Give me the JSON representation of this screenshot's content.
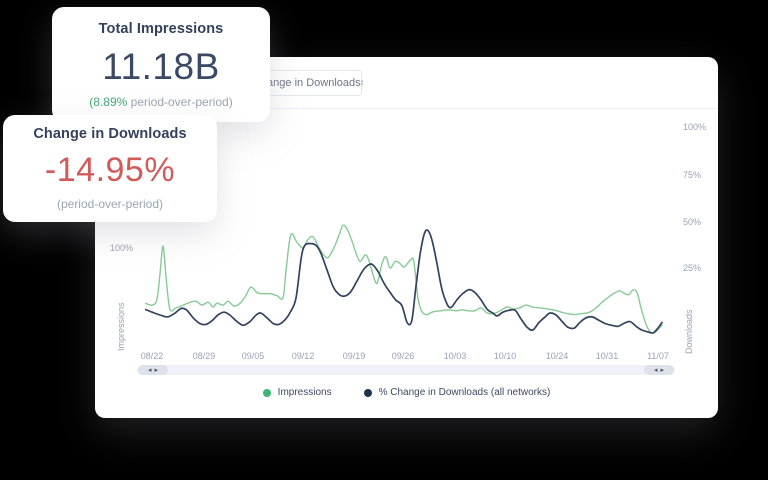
{
  "cards": {
    "impressions": {
      "title": "Total Impressions",
      "value": "11.18B",
      "delta": "(8.89%",
      "delta_rest": " period-over-period)",
      "delta_color": "#45a878"
    },
    "downloads": {
      "title": "Change in Downloads",
      "value": "-14.95%",
      "subtitle": "(period-over-period)",
      "value_color": "#d15b5b"
    }
  },
  "panel": {
    "dropdown": {
      "value": "Change in Downloads"
    },
    "legend": [
      {
        "label": "Impressions",
        "color": "#3eb573"
      },
      {
        "label": "% Change in Downloads (all networks)",
        "color": "#1e3253"
      }
    ]
  },
  "icons": {
    "select_caret_up": "▴",
    "select_caret_down": "▾",
    "scroll_left": "◂",
    "scroll_right": "▸"
  },
  "chart_data": {
    "type": "line",
    "title": "",
    "x_tick_labels": [
      "08/22",
      "08/29",
      "09/05",
      "09/12",
      "09/19",
      "09/26",
      "10/03",
      "10/10",
      "10/24",
      "10/31",
      "11/07"
    ],
    "left_axis": {
      "label": "Impressions",
      "unit": "%",
      "visible_ticks": [
        "100%"
      ]
    },
    "right_axis": {
      "label": "Downloads",
      "unit": "%",
      "ticks": [
        "100%",
        "75%",
        "50%",
        "25%"
      ]
    },
    "legend_position": "bottom",
    "grid": false,
    "x_unit": "percent across time window 08/22–11/07",
    "series": [
      {
        "name": "Impressions",
        "axis": "left",
        "color": "#88ca96",
        "points": [
          [
            0,
            44
          ],
          [
            1.4,
            42
          ],
          [
            2.3,
            48
          ],
          [
            2.9,
            75
          ],
          [
            3.5,
            104
          ],
          [
            4.1,
            70
          ],
          [
            4.8,
            38
          ],
          [
            6,
            39
          ],
          [
            7.4,
            42
          ],
          [
            8.7,
            45
          ],
          [
            9.9,
            46
          ],
          [
            11,
            42
          ],
          [
            12.2,
            45
          ],
          [
            13.2,
            40
          ],
          [
            13.9,
            44
          ],
          [
            15.1,
            42
          ],
          [
            16.1,
            46
          ],
          [
            17.2,
            41
          ],
          [
            18.4,
            44
          ],
          [
            19.5,
            52
          ],
          [
            20.5,
            61
          ],
          [
            21.7,
            55
          ],
          [
            22.8,
            54
          ],
          [
            24.2,
            54
          ],
          [
            25.5,
            52
          ],
          [
            26.7,
            50
          ],
          [
            27.3,
            79
          ],
          [
            28.2,
            116
          ],
          [
            29.4,
            108
          ],
          [
            30.6,
            102
          ],
          [
            31.5,
            111
          ],
          [
            32.5,
            114
          ],
          [
            33.5,
            104
          ],
          [
            34.4,
            96
          ],
          [
            35.4,
            92
          ],
          [
            36.6,
            103
          ],
          [
            37.7,
            118
          ],
          [
            38.3,
            126
          ],
          [
            39.1,
            122
          ],
          [
            40,
            110
          ],
          [
            40.8,
            97
          ],
          [
            41.6,
            88
          ],
          [
            42.6,
            95
          ],
          [
            43.3,
            89
          ],
          [
            44.1,
            74
          ],
          [
            44.9,
            65
          ],
          [
            45.8,
            85
          ],
          [
            46.6,
            93
          ],
          [
            47.4,
            81
          ],
          [
            48.4,
            88
          ],
          [
            49.3,
            86
          ],
          [
            50.1,
            82
          ],
          [
            51.3,
            89
          ],
          [
            52,
            88
          ],
          [
            52.8,
            49
          ],
          [
            53.6,
            35
          ],
          [
            54.5,
            32
          ],
          [
            55.7,
            35
          ],
          [
            57.1,
            36
          ],
          [
            58.6,
            37
          ],
          [
            60.2,
            36
          ],
          [
            61.3,
            37
          ],
          [
            62.5,
            36
          ],
          [
            63.8,
            36
          ],
          [
            65,
            39
          ],
          [
            66.1,
            34
          ],
          [
            67.3,
            33
          ],
          [
            68.7,
            36
          ],
          [
            70,
            40
          ],
          [
            71.2,
            38
          ],
          [
            72.5,
            39
          ],
          [
            73.7,
            42
          ],
          [
            74.9,
            40
          ],
          [
            76.4,
            39
          ],
          [
            77.8,
            38
          ],
          [
            78.9,
            37
          ],
          [
            80.3,
            35
          ],
          [
            81.8,
            33
          ],
          [
            83.2,
            32
          ],
          [
            84.3,
            33
          ],
          [
            85.7,
            34
          ],
          [
            87,
            38
          ],
          [
            88.4,
            45
          ],
          [
            89.8,
            51
          ],
          [
            90.9,
            55
          ],
          [
            91.9,
            57
          ],
          [
            92.8,
            54
          ],
          [
            93.6,
            53
          ],
          [
            94.4,
            58
          ],
          [
            95.2,
            55
          ],
          [
            95.9,
            40
          ],
          [
            96.9,
            22
          ],
          [
            97.9,
            13
          ],
          [
            98.8,
            14
          ],
          [
            100,
            21
          ]
        ]
      },
      {
        "name": "% Change in Downloads (all networks)",
        "axis": "right",
        "color": "#32425f",
        "points": [
          [
            0,
            3
          ],
          [
            1.4,
            1.5
          ],
          [
            2.9,
            0
          ],
          [
            4.4,
            -1
          ],
          [
            5.8,
            1
          ],
          [
            7,
            3.5
          ],
          [
            8.1,
            2.5
          ],
          [
            9.3,
            -1.5
          ],
          [
            10.6,
            -4.5
          ],
          [
            11.8,
            -5
          ],
          [
            13,
            -3
          ],
          [
            14.1,
            0
          ],
          [
            15.3,
            1.5
          ],
          [
            16.4,
            0
          ],
          [
            17.8,
            -3.5
          ],
          [
            19,
            -5.5
          ],
          [
            20.3,
            -3.5
          ],
          [
            21.5,
            0
          ],
          [
            22.4,
            1
          ],
          [
            23.6,
            -1.5
          ],
          [
            24.8,
            -4.5
          ],
          [
            25.9,
            -5
          ],
          [
            27.1,
            -2.5
          ],
          [
            28.2,
            2
          ],
          [
            29.2,
            9
          ],
          [
            30.2,
            30
          ],
          [
            30.9,
            37
          ],
          [
            32.1,
            38
          ],
          [
            33.1,
            37
          ],
          [
            34,
            33
          ],
          [
            35.2,
            24
          ],
          [
            36.4,
            15
          ],
          [
            37.5,
            11
          ],
          [
            38.5,
            10
          ],
          [
            39.7,
            12
          ],
          [
            40.8,
            17
          ],
          [
            42,
            23
          ],
          [
            42.9,
            26
          ],
          [
            43.9,
            27
          ],
          [
            45.1,
            23
          ],
          [
            46.2,
            17
          ],
          [
            47.4,
            12
          ],
          [
            48.5,
            8
          ],
          [
            49.7,
            5
          ],
          [
            50.7,
            -4
          ],
          [
            51.6,
            -3
          ],
          [
            52.4,
            15
          ],
          [
            53.2,
            32
          ],
          [
            54,
            43
          ],
          [
            54.7,
            45
          ],
          [
            55.5,
            40
          ],
          [
            56.5,
            27
          ],
          [
            57.4,
            14
          ],
          [
            58.4,
            6
          ],
          [
            59.2,
            4
          ],
          [
            60.3,
            8
          ],
          [
            61.5,
            11.5
          ],
          [
            62.7,
            13.5
          ],
          [
            63.8,
            12
          ],
          [
            65,
            8
          ],
          [
            66.2,
            3
          ],
          [
            67.3,
            1
          ],
          [
            68.1,
            -0.5
          ],
          [
            69.2,
            1.5
          ],
          [
            70.4,
            2.5
          ],
          [
            71.6,
            2.5
          ],
          [
            72.7,
            -2
          ],
          [
            73.9,
            -6.5
          ],
          [
            75,
            -8
          ],
          [
            76.2,
            -4
          ],
          [
            77.4,
            -1
          ],
          [
            78.3,
            1
          ],
          [
            79.5,
            0
          ],
          [
            80.7,
            -3.5
          ],
          [
            81.8,
            -6.5
          ],
          [
            83,
            -7
          ],
          [
            84.1,
            -4
          ],
          [
            85.3,
            -1.5
          ],
          [
            86.5,
            -1
          ],
          [
            87.6,
            -2.5
          ],
          [
            89,
            -4.5
          ],
          [
            90.3,
            -5.5
          ],
          [
            91.5,
            -6
          ],
          [
            92.6,
            -4.5
          ],
          [
            93.8,
            -3.5
          ],
          [
            95,
            -6
          ],
          [
            96.1,
            -8
          ],
          [
            97.3,
            -9
          ],
          [
            98.3,
            -9.5
          ],
          [
            99.2,
            -7
          ],
          [
            100,
            -4
          ]
        ]
      }
    ]
  }
}
